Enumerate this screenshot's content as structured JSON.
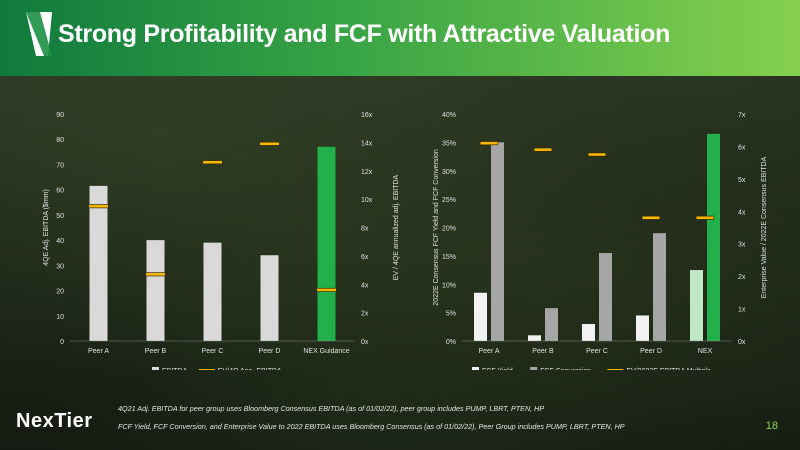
{
  "header": {
    "title": "Strong Profitability and FCF with Attractive Valuation"
  },
  "chart_data": [
    {
      "type": "bar",
      "categories": [
        "Peer A",
        "Peer B",
        "Peer C",
        "Peer D",
        "NEX Guidance"
      ],
      "ylabel": "4QE Adj. EBITDA ($mm)",
      "y2label": "EV / 4QE annualized adj. EBITDA",
      "ylim": [
        0,
        90
      ],
      "yticks": [
        0,
        10,
        20,
        30,
        40,
        50,
        60,
        70,
        80,
        90
      ],
      "y2lim": [
        0,
        16
      ],
      "y2ticks": [
        "0x",
        "2x",
        "4x",
        "6x",
        "8x",
        "10x",
        "12x",
        "14x",
        "16x"
      ],
      "series": [
        {
          "name": "EBITDA",
          "axis": "left",
          "kind": "bar",
          "values": [
            61.5,
            40,
            39,
            34,
            77
          ]
        },
        {
          "name": "EV/4Q Ann. EBITDA",
          "axis": "right",
          "kind": "marker",
          "values": [
            9.5,
            4.7,
            12.6,
            13.9,
            3.6
          ]
        }
      ],
      "highlight_category": "NEX Guidance",
      "legend": [
        "EBITDA",
        "EV/4Q Ann. EBITDA"
      ],
      "legend_position": "bottom",
      "colors": {
        "bar": "#d9d9d9",
        "highlight": "#22b04b",
        "marker": "#f5b800"
      }
    },
    {
      "type": "bar",
      "categories": [
        "Peer A",
        "Peer B",
        "Peer C",
        "Peer D",
        "NEX"
      ],
      "ylabel": "2022E Consensus FCF Yield and FCF Conversion",
      "y2label": "Enterprise Value / 2022E Consensus EBITDA",
      "ylim": [
        0,
        40
      ],
      "yticks": [
        "0%",
        "5%",
        "10%",
        "15%",
        "20%",
        "25%",
        "30%",
        "35%",
        "40%"
      ],
      "y2lim": [
        0,
        7
      ],
      "y2ticks": [
        "0x",
        "1x",
        "2x",
        "3x",
        "4x",
        "5x",
        "6x",
        "7x"
      ],
      "series": [
        {
          "name": "FCF Yield",
          "axis": "left",
          "kind": "bar",
          "values": [
            8.5,
            1,
            3,
            4.5,
            12.5
          ]
        },
        {
          "name": "FCF Conversion",
          "axis": "left",
          "kind": "bar",
          "values": [
            35,
            5.8,
            15.5,
            19,
            36.5
          ]
        },
        {
          "name": "EV/2022E EBITDA Multiple",
          "axis": "right",
          "kind": "marker",
          "values": [
            6.1,
            5.9,
            5.75,
            3.8,
            3.8
          ]
        }
      ],
      "highlight_category": "NEX",
      "legend": [
        "FCF Yield",
        "FCF Conversion",
        "EV/2022E EBITDA Multiple"
      ],
      "legend_position": "bottom",
      "colors": {
        "yield": "#f2f2f2",
        "conversion": "#a6a6a6",
        "yield_highlight": "#bfe8c7",
        "conversion_highlight": "#22b04b",
        "marker": "#f5b800"
      }
    }
  ],
  "footnotes": [
    "4Q21 Adj. EBITDA for peer group uses Bloomberg Consensus EBITDA (as of 01/02/22), peer group includes PUMP, LBRT, PTEN, HP",
    "FCF Yield, FCF Conversion, and Enterprise Value to 2022 EBITDA uses Bloomberg Consensus (as of 01/02/22), Peer Group includes PUMP, LBRT, PTEN, HP"
  ],
  "brand": "NexTier",
  "page_number": "18"
}
